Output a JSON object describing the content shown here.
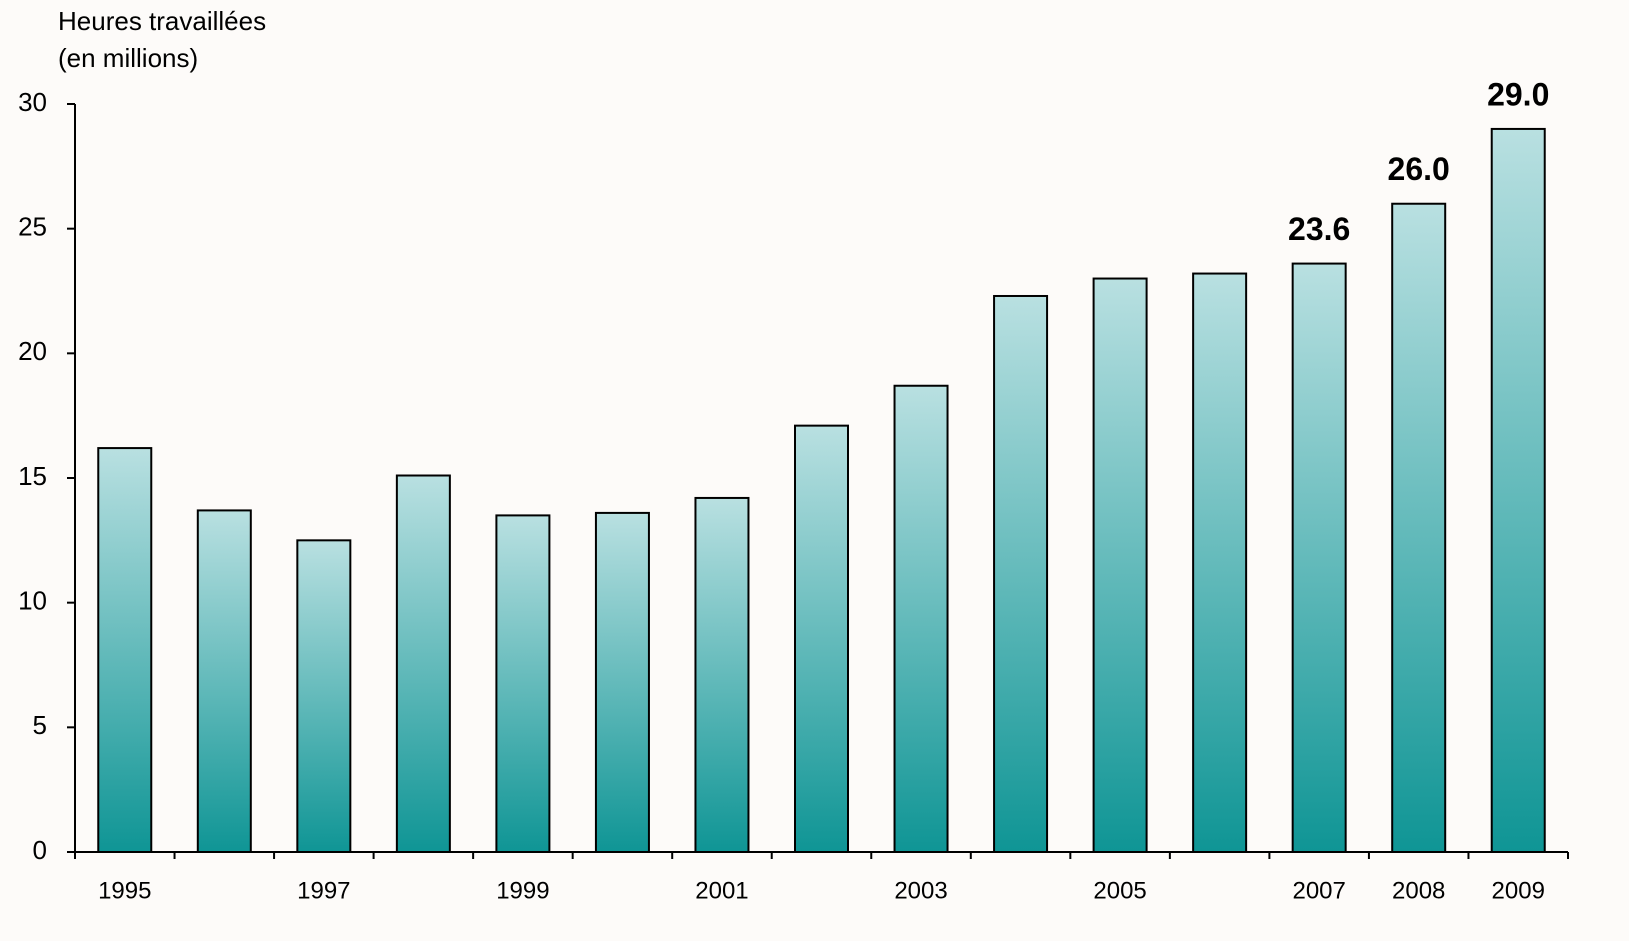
{
  "chart_data": {
    "type": "bar",
    "title_lines": [
      "Heures travaillées",
      "(en millions)"
    ],
    "categories": [
      "1995",
      null,
      "1997",
      null,
      "1999",
      null,
      "2001",
      null,
      "2003",
      null,
      "2005",
      null,
      "2007",
      "2008",
      "2009"
    ],
    "values": [
      16.2,
      13.7,
      12.5,
      15.1,
      13.5,
      13.6,
      14.2,
      17.1,
      18.7,
      22.3,
      23.0,
      23.2,
      23.6,
      26.0,
      29.0
    ],
    "value_labels": [
      null,
      null,
      null,
      null,
      null,
      null,
      null,
      null,
      null,
      null,
      null,
      null,
      "23.6",
      "26.0",
      "29.0"
    ],
    "color": [
      "#b9e0e1",
      "#0f9595"
    ],
    "ylim": [
      0,
      30
    ],
    "yticks": [
      0,
      5,
      10,
      15,
      20,
      25,
      30
    ],
    "grid": false
  }
}
